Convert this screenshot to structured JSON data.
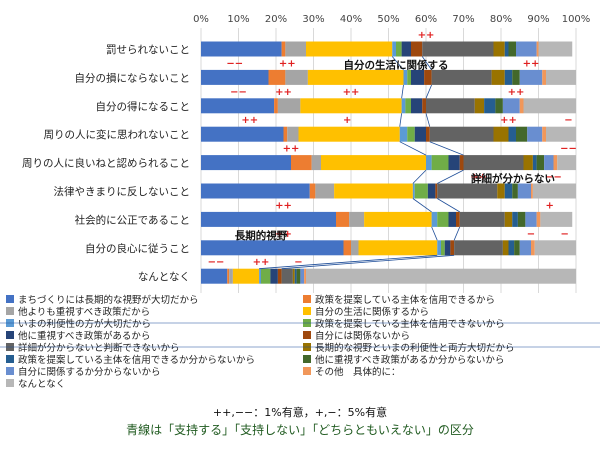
{
  "chart_data": {
    "type": "bar",
    "orientation": "horizontal",
    "stacked": true,
    "xlim": [
      0,
      100
    ],
    "x_ticks": [
      "0%",
      "10%",
      "20%",
      "30%",
      "40%",
      "50%",
      "60%",
      "70%",
      "80%",
      "90%",
      "100%"
    ],
    "grid": true,
    "legend_position": "bottom",
    "categories": [
      "罰せられないこと",
      "自分の損にならないこと",
      "自分の得になること",
      "周りの人に変に思われないこと",
      "周りの人に良いねと認められること",
      "法律やきまりに反しないこと",
      "社会的に公正であること",
      "自分の良心に従うこと",
      "なんとなく"
    ],
    "series": [
      {
        "name": "まちづくりには長期的な視野が大切だから",
        "color": "#4472c4",
        "values": [
          21.5,
          18,
          19.5,
          22,
          24,
          29,
          36,
          38,
          7
        ]
      },
      {
        "name": "政策を提案している主体を信用できるから",
        "color": "#ed7d31",
        "values": [
          1,
          4.5,
          1,
          1,
          5.5,
          1.5,
          3.5,
          2,
          0.5
        ]
      },
      {
        "name": "他よりも重視すべき政策だから",
        "color": "#a5a5a5",
        "values": [
          5.5,
          6,
          6,
          3,
          2.5,
          5,
          4,
          2,
          1
        ]
      },
      {
        "name": "自分の生活に関係するから",
        "color": "#ffc000",
        "values": [
          23,
          25.5,
          27,
          27,
          28,
          21,
          18,
          21,
          7
        ]
      },
      {
        "name": "いまの利便性の方が大切だから",
        "color": "#5b9bd5",
        "values": [
          1,
          1,
          1,
          2,
          1.5,
          0.5,
          1.5,
          1,
          0.5
        ]
      },
      {
        "name": "政策を提案している主体を信用できないから",
        "color": "#70ad47",
        "values": [
          1.5,
          1,
          1.5,
          2,
          4.5,
          3.5,
          3,
          1,
          2.5
        ]
      },
      {
        "name": "他に重視すべき政策があるから",
        "color": "#264478",
        "values": [
          2.5,
          3.5,
          3,
          3,
          3,
          2,
          2,
          1.5,
          2
        ]
      },
      {
        "name": "自分には関係ないから",
        "color": "#9e480e",
        "values": [
          3,
          2,
          1,
          1,
          1,
          0.5,
          1,
          1,
          1
        ]
      },
      {
        "name": "詳細が分からないと判断できないから",
        "color": "#636363",
        "values": [
          19,
          16,
          13,
          17,
          16,
          16,
          12,
          13,
          3
        ]
      },
      {
        "name": "長期的な視野といまの利便性と両方大切だから",
        "color": "#997300",
        "values": [
          3,
          3.5,
          2.5,
          4,
          2.5,
          2,
          2,
          1.5,
          0.5
        ]
      },
      {
        "name": "政策を提案している主体を信用できるか分からないから",
        "color": "#255e91",
        "values": [
          1,
          2,
          3,
          2,
          1,
          2,
          1.5,
          1.5,
          0.5
        ]
      },
      {
        "name": "他に重視すべき政策があるか分からないから",
        "color": "#43682b",
        "values": [
          2,
          2,
          2,
          3,
          2,
          1.5,
          2,
          1.5,
          1
        ]
      },
      {
        "name": "自分に関係するか分からないから",
        "color": "#698ed0",
        "values": [
          5.5,
          6,
          4.5,
          4,
          2.5,
          3.5,
          3,
          3,
          1
        ]
      },
      {
        "name": "その他　具体的に：",
        "color": "#f1975a",
        "values": [
          0.5,
          1,
          1,
          1,
          1,
          0.5,
          1,
          1,
          0.5
        ]
      },
      {
        "name": "なんとなく",
        "color": "#b7b7b7",
        "values": [
          9,
          8,
          14,
          8,
          5,
          11.5,
          8.5,
          11,
          72
        ]
      }
    ],
    "annotations": [
      {
        "text": "自分の生活に関係する",
        "category_index": 1,
        "x": 38
      },
      {
        "text": "詳細が分からない",
        "category_index": 5,
        "x": 72
      },
      {
        "text": "長期的視野",
        "category_index": 7,
        "x": 9
      }
    ],
    "sig_marks": [
      {
        "row": 0,
        "x": 60,
        "mark": "++"
      },
      {
        "row": 1,
        "x": 9,
        "mark": "−−"
      },
      {
        "row": 1,
        "x": 23,
        "mark": "++"
      },
      {
        "row": 1,
        "x": 88,
        "mark": "++"
      },
      {
        "row": 2,
        "x": 10,
        "mark": "−−"
      },
      {
        "row": 2,
        "x": 22,
        "mark": "++"
      },
      {
        "row": 2,
        "x": 40,
        "mark": "++"
      },
      {
        "row": 2,
        "x": 84,
        "mark": "++"
      },
      {
        "row": 3,
        "x": 13,
        "mark": "++"
      },
      {
        "row": 3,
        "x": 39,
        "mark": "+"
      },
      {
        "row": 3,
        "x": 82,
        "mark": "++"
      },
      {
        "row": 3,
        "x": 98,
        "mark": "−"
      },
      {
        "row": 4,
        "x": 24,
        "mark": "++"
      },
      {
        "row": 4,
        "x": 98,
        "mark": "−−"
      },
      {
        "row": 5,
        "x": 74,
        "mark": "++"
      },
      {
        "row": 5,
        "x": 94,
        "mark": "−−"
      },
      {
        "row": 6,
        "x": 22,
        "mark": "++"
      },
      {
        "row": 6,
        "x": 93,
        "mark": "+"
      },
      {
        "row": 7,
        "x": 22,
        "mark": "++"
      },
      {
        "row": 7,
        "x": 88,
        "mark": "−"
      },
      {
        "row": 7,
        "x": 97,
        "mark": "−"
      },
      {
        "row": 8,
        "x": 4,
        "mark": "−−"
      },
      {
        "row": 8,
        "x": 16,
        "mark": "++"
      },
      {
        "row": 8,
        "x": 26,
        "mark": "−"
      }
    ]
  },
  "sig_note": "++,−−：1%有意，+,−：5%有意",
  "caption": "青線は「支持する」「支持しない」「どちらともいえない」の区分"
}
